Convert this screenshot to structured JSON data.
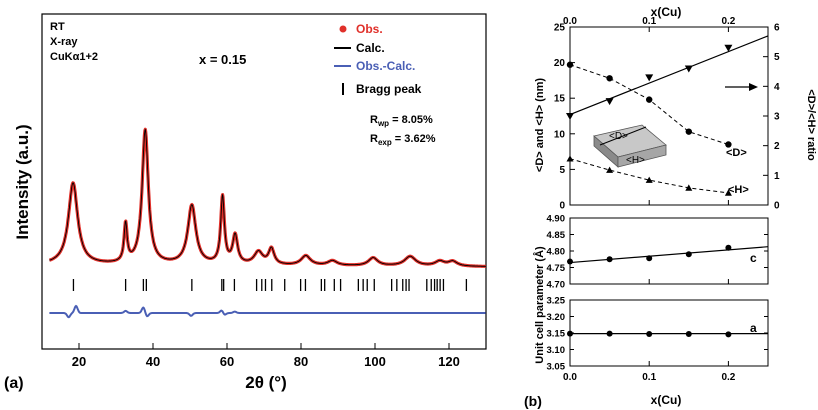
{
  "chart_data": [
    {
      "panel_label": "(a)",
      "type": "line",
      "xlabel": "2θ (°)",
      "ylabel": "Intensity (a.u.)",
      "xlim": [
        10,
        130
      ],
      "xticks": [
        "20",
        "40",
        "60",
        "80",
        "100",
        "120"
      ],
      "info_lines": [
        "RT",
        "X-ray",
        "CuKα1+2"
      ],
      "composition": "x = 0.15",
      "legend": [
        {
          "label": "Obs.",
          "color": "#e0302a",
          "marker": "dot"
        },
        {
          "label": "Calc.",
          "color": "#000000",
          "marker": "line"
        },
        {
          "label": "Obs.-Calc.",
          "color": "#4a5fb5",
          "marker": "line"
        },
        {
          "label": "Bragg peak",
          "color": "#000000",
          "marker": "tick"
        }
      ],
      "rwp": "R_wp = 8.05%",
      "rexp": "R_exp = 3.62%",
      "background_level": 0.02,
      "peaks": [
        {
          "pos": 18.4,
          "height": 0.51,
          "width": 1.5
        },
        {
          "pos": 32.6,
          "height": 0.24,
          "width": 0.5
        },
        {
          "pos": 37.9,
          "height": 0.84,
          "width": 1.0
        },
        {
          "pos": 50.5,
          "height": 0.37,
          "width": 1.3
        },
        {
          "pos": 58.8,
          "height": 0.42,
          "width": 0.6
        },
        {
          "pos": 62.2,
          "height": 0.18,
          "width": 0.8
        },
        {
          "pos": 68.5,
          "height": 0.08,
          "width": 1.4
        },
        {
          "pos": 72.0,
          "height": 0.1,
          "width": 0.9
        },
        {
          "pos": 81.3,
          "height": 0.06,
          "width": 1.5
        },
        {
          "pos": 88.5,
          "height": 0.03,
          "width": 1.5
        },
        {
          "pos": 99.5,
          "height": 0.05,
          "width": 1.5
        },
        {
          "pos": 109.5,
          "height": 0.06,
          "width": 1.8
        },
        {
          "pos": 117.5,
          "height": 0.03,
          "width": 1.5
        },
        {
          "pos": 121.0,
          "height": 0.03,
          "width": 1.5
        }
      ],
      "bragg_peaks": [
        18.5,
        32.6,
        37.4,
        38.2,
        50.5,
        58.6,
        59.1,
        62.0,
        68.0,
        69.4,
        70.4,
        72.1,
        75.6,
        79.9,
        81.2,
        85.5,
        86.4,
        89.0,
        90.7,
        95.5,
        96.8,
        97.9,
        99.8,
        104.5,
        105.9,
        107.5,
        108.4,
        109.2,
        114.0,
        115.2,
        116.1,
        116.8,
        117.6,
        118.5,
        124.7
      ],
      "diff_features": [
        {
          "pos": 17.2,
          "amp": -0.6
        },
        {
          "pos": 19.2,
          "amp": 1.0
        },
        {
          "pos": 32.6,
          "amp": 0.3
        },
        {
          "pos": 37.4,
          "amp": 0.8
        },
        {
          "pos": 38.4,
          "amp": -0.5
        },
        {
          "pos": 50.3,
          "amp": -0.4
        },
        {
          "pos": 58.6,
          "amp": 0.4
        },
        {
          "pos": 59.3,
          "amp": -0.3
        },
        {
          "pos": 62.1,
          "amp": 0.2
        }
      ]
    },
    {
      "panel_label": "(b)",
      "type": "line",
      "top_xlabel": "x(Cu)",
      "bottom_xlabel": "x(Cu)",
      "xlim": [
        0,
        0.25
      ],
      "xticks": [
        "0.0",
        "0.1",
        "0.2"
      ],
      "top_panel": {
        "ylabel_left": "<D> and <H> (nm)",
        "ylabel_right": "<D>/<H> ratio",
        "ylim_left": [
          0,
          25
        ],
        "yticks_left": [
          "0",
          "5",
          "10",
          "15",
          "20",
          "25"
        ],
        "ylim_right": [
          0,
          6
        ],
        "yticks_right": [
          "0",
          "1",
          "2",
          "3",
          "4",
          "5",
          "6"
        ],
        "inset_labels": [
          "<D>",
          "<H>"
        ],
        "series": [
          {
            "name": "<D>",
            "marker": "circle",
            "line": "dashed",
            "x": [
              0.0,
              0.05,
              0.1,
              0.15,
              0.2
            ],
            "y": [
              19.7,
              17.8,
              14.8,
              10.3,
              8.5
            ]
          },
          {
            "name": "<H>",
            "marker": "triangle-up",
            "line": "dashed",
            "x": [
              0.0,
              0.05,
              0.1,
              0.15,
              0.2
            ],
            "y": [
              6.5,
              4.9,
              3.5,
              2.4,
              1.7
            ]
          },
          {
            "name": "<D>/<H> ratio",
            "marker": "triangle-down",
            "line": "fit",
            "axis": "right",
            "x": [
              0.0,
              0.05,
              0.1,
              0.15,
              0.2
            ],
            "y": [
              3.0,
              3.5,
              4.3,
              4.6,
              5.3
            ],
            "fit": [
              [
                0.0,
                3.05
              ],
              [
                0.25,
                5.7
              ]
            ]
          }
        ]
      },
      "c_panel": {
        "ylabel": "Unit cell parameter (Å)",
        "label": "c",
        "ylim": [
          4.7,
          4.9
        ],
        "yticks": [
          "4.70",
          "4.75",
          "4.80",
          "4.85",
          "4.90"
        ],
        "x": [
          0.0,
          0.05,
          0.1,
          0.15,
          0.2
        ],
        "y": [
          4.768,
          4.775,
          4.778,
          4.79,
          4.81
        ],
        "fit": [
          [
            0.0,
            4.765
          ],
          [
            0.25,
            4.813
          ]
        ]
      },
      "a_panel": {
        "label": "a",
        "ylim": [
          3.05,
          3.25
        ],
        "yticks": [
          "3.05",
          "3.10",
          "3.15",
          "3.20",
          "3.25"
        ],
        "x": [
          0.0,
          0.05,
          0.1,
          0.15,
          0.2
        ],
        "y": [
          3.148,
          3.148,
          3.147,
          3.147,
          3.146
        ],
        "fit": [
          [
            0.0,
            3.148
          ],
          [
            0.25,
            3.148
          ]
        ]
      }
    }
  ]
}
